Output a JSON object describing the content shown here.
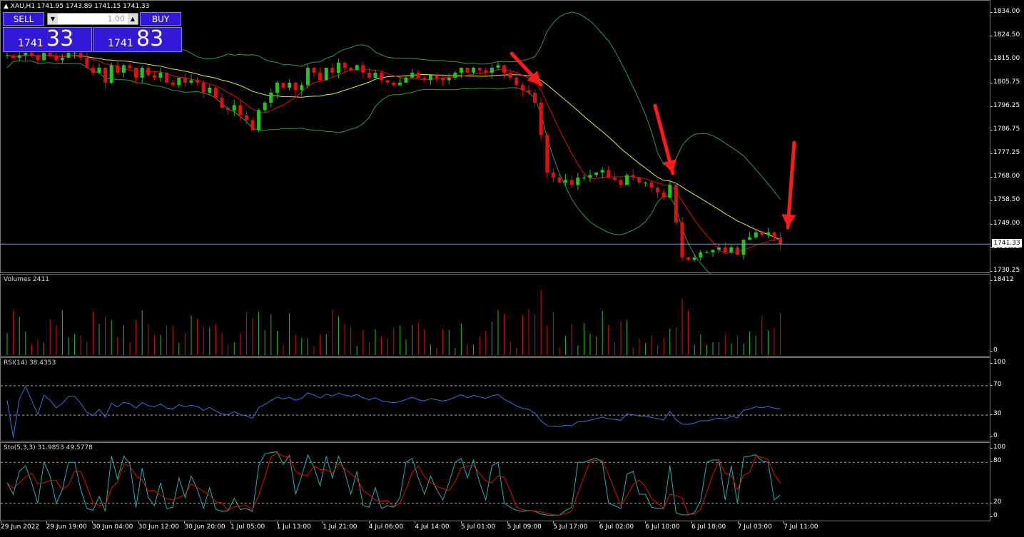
{
  "symbol_header": "▲ XAU,H1  1741.95 1743.89 1741.15 1741.33",
  "trade_panel": {
    "sell_label": "SELL",
    "buy_label": "BUY",
    "lot_value": "1.00",
    "sell_price_small": "1741",
    "sell_price_big": "33",
    "buy_price_small": "1741",
    "buy_price_big": "83"
  },
  "price_axis": [
    "1834.00",
    "1824.50",
    "1815.00",
    "1805.75",
    "1796.25",
    "1786.75",
    "1777.25",
    "1768.00",
    "1758.50",
    "1749.00",
    "1739.75",
    "1730.25"
  ],
  "current_price": "1741.33",
  "volumes": {
    "label": "Volumes 2411",
    "max_label": "18412",
    "min_label": "0"
  },
  "rsi": {
    "label": "RSI(14) 38.4353",
    "ticks": [
      "100",
      "70",
      "30",
      "0"
    ]
  },
  "stoch": {
    "label": "Sto(5,3,3) 31.9853 49.5778",
    "ticks": [
      "100",
      "80",
      "20",
      "0"
    ]
  },
  "time_axis": [
    "29 Jun 2022",
    "29 Jun 19:00",
    "30 Jun 04:00",
    "30 Jun 12:00",
    "30 Jun 20:00",
    "1 Jul 05:00",
    "1 Jul 13:00",
    "1 Jul 21:00",
    "4 Jul 06:00",
    "4 Jul 14:00",
    "5 Jul 01:00",
    "5 Jul 09:00",
    "5 Jul 17:00",
    "6 Jul 02:00",
    "6 Jul 10:00",
    "6 Jul 18:00",
    "7 Jul 03:00",
    "7 Jul 11:00"
  ],
  "colors": {
    "bull": "#22c522",
    "bear": "#e01010",
    "bands": "#2e9a4e",
    "ma_fast": "#e01010",
    "ma_slow": "#e6e640",
    "rsi": "#3a6fe0",
    "stoch_main": "#28b0b0",
    "stoch_signal": "#e01010",
    "arrow": "#ff1a1a"
  },
  "chart_data": {
    "type": "candlestick",
    "symbol": "XAU",
    "timeframe": "H1",
    "close": [
      1817,
      1816,
      1817,
      1818,
      1817,
      1815,
      1818,
      1817,
      1815,
      1816,
      1818,
      1818,
      1816,
      1812,
      1810,
      1812,
      1806,
      1813,
      1810,
      1813,
      1812,
      1808,
      1812,
      1809,
      1808,
      1810,
      1806,
      1805,
      1808,
      1806,
      1807,
      1806,
      1802,
      1804,
      1800,
      1796,
      1795,
      1797,
      1793,
      1791,
      1787,
      1795,
      1798,
      1802,
      1806,
      1804,
      1806,
      1803,
      1805,
      1812,
      1810,
      1807,
      1812,
      1810,
      1814,
      1812,
      1811,
      1813,
      1810,
      1808,
      1810,
      1807,
      1806,
      1805,
      1806,
      1808,
      1810,
      1808,
      1807,
      1809,
      1808,
      1807,
      1808,
      1810,
      1812,
      1810,
      1812,
      1811,
      1810,
      1812,
      1813,
      1810,
      1808,
      1805,
      1803,
      1802,
      1798,
      1785,
      1770,
      1768,
      1766,
      1767,
      1765,
      1768,
      1768,
      1769,
      1770,
      1771,
      1768,
      1767,
      1765,
      1769,
      1768,
      1766,
      1766,
      1764,
      1762,
      1760,
      1765,
      1750,
      1736,
      1735,
      1736,
      1738,
      1738,
      1739,
      1740,
      1738,
      1740,
      1737,
      1743,
      1744,
      1746,
      1745,
      1746,
      1744,
      1741.33
    ],
    "price_range": [
      1730.25,
      1834.0
    ],
    "volume_max": 18412,
    "rsi": {
      "period": 14,
      "last": 38.4353,
      "levels": [
        70,
        30
      ]
    },
    "stochastic": {
      "params": "5,3,3",
      "main": 31.9853,
      "signal": 49.5778,
      "levels": [
        80,
        20
      ]
    }
  }
}
